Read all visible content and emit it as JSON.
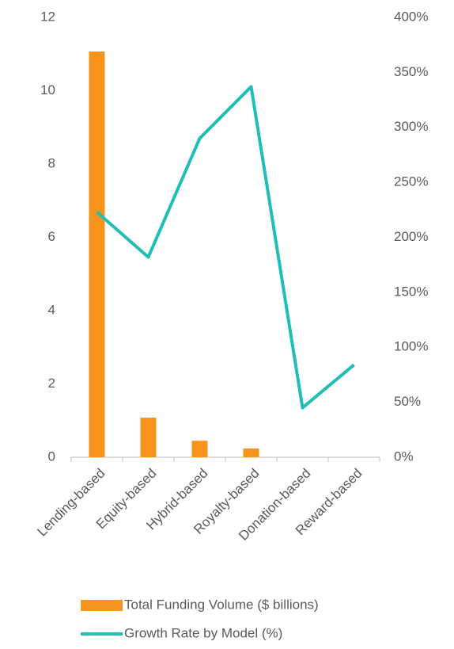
{
  "chart_data": {
    "type": "bar",
    "categories": [
      "Lending-based",
      "Equity-based",
      "Hybrid-based",
      "Royalty-based",
      "Donation-based",
      "Reward-based"
    ],
    "series": [
      {
        "name": "Total Funding Volume ($ billions)",
        "type": "bar",
        "color": "#f7941d",
        "values": [
          11.07,
          1.08,
          0.45,
          0.24,
          0,
          0
        ]
      },
      {
        "name": "Growth Rate by Model (%)",
        "type": "line",
        "axis": "y2",
        "color": "#1fbfb8",
        "values": [
          223,
          182,
          290,
          337,
          45,
          84
        ]
      }
    ],
    "ylim": [
      0,
      12
    ],
    "yticks": [
      0,
      2,
      4,
      6,
      8,
      10,
      12
    ],
    "y2lim": [
      0,
      400
    ],
    "y2ticks": [
      {
        "value": 0,
        "label": "0%"
      },
      {
        "value": 50,
        "label": "50%"
      },
      {
        "value": 100,
        "label": "100%"
      },
      {
        "value": 150,
        "label": "150%"
      },
      {
        "value": 200,
        "label": "200%"
      },
      {
        "value": 250,
        "label": "250%"
      },
      {
        "value": 300,
        "label": "300%"
      },
      {
        "value": 350,
        "label": "350%"
      },
      {
        "value": 400,
        "label": "400%"
      }
    ],
    "grid": false
  }
}
